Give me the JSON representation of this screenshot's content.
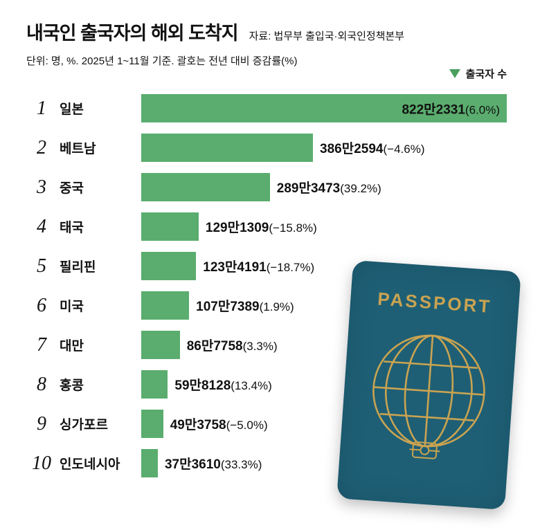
{
  "header": {
    "title": "내국인 출국자의 해외 도착지",
    "source": "자료: 법무부 출입국·외국인정책본부",
    "subtitle": "단위: 명, %. 2025년 1~11월 기준. 괄호는 전년 대비 증감률(%)",
    "legend_label": "출국자 수"
  },
  "colors": {
    "bar": "#5aad6e",
    "legend_triangle": "#4a9e5f",
    "passport_body": "#1e5f75",
    "passport_gold": "#c9a351"
  },
  "chart_data": {
    "type": "bar",
    "orientation": "horizontal",
    "title": "내국인 출국자의 해외 도착지",
    "legend": [
      "출국자 수"
    ],
    "unit": "명",
    "ranks": [
      "1",
      "2",
      "3",
      "4",
      "5",
      "6",
      "7",
      "8",
      "9",
      "10"
    ],
    "categories": [
      "일본",
      "베트남",
      "중국",
      "태국",
      "필리핀",
      "미국",
      "대만",
      "홍콩",
      "싱가포르",
      "인도네시아"
    ],
    "values": [
      8222331,
      3862594,
      2893473,
      1291309,
      1234191,
      1077389,
      867758,
      598128,
      493758,
      373610
    ],
    "value_labels": [
      "822만2331",
      "386만2594",
      "289만3473",
      "129만1309",
      "123만4191",
      "107만7389",
      "86만7758",
      "59만8128",
      "49만3758",
      "37만3610"
    ],
    "change_labels": [
      "(6.0%)",
      "(−4.6%)",
      "(39.2%)",
      "(−15.8%)",
      "(−18.7%)",
      "(1.9%)",
      "(3.3%)",
      "(13.4%)",
      "(−5.0%)",
      "(33.3%)"
    ]
  },
  "passport": {
    "label": "PASSPORT"
  }
}
